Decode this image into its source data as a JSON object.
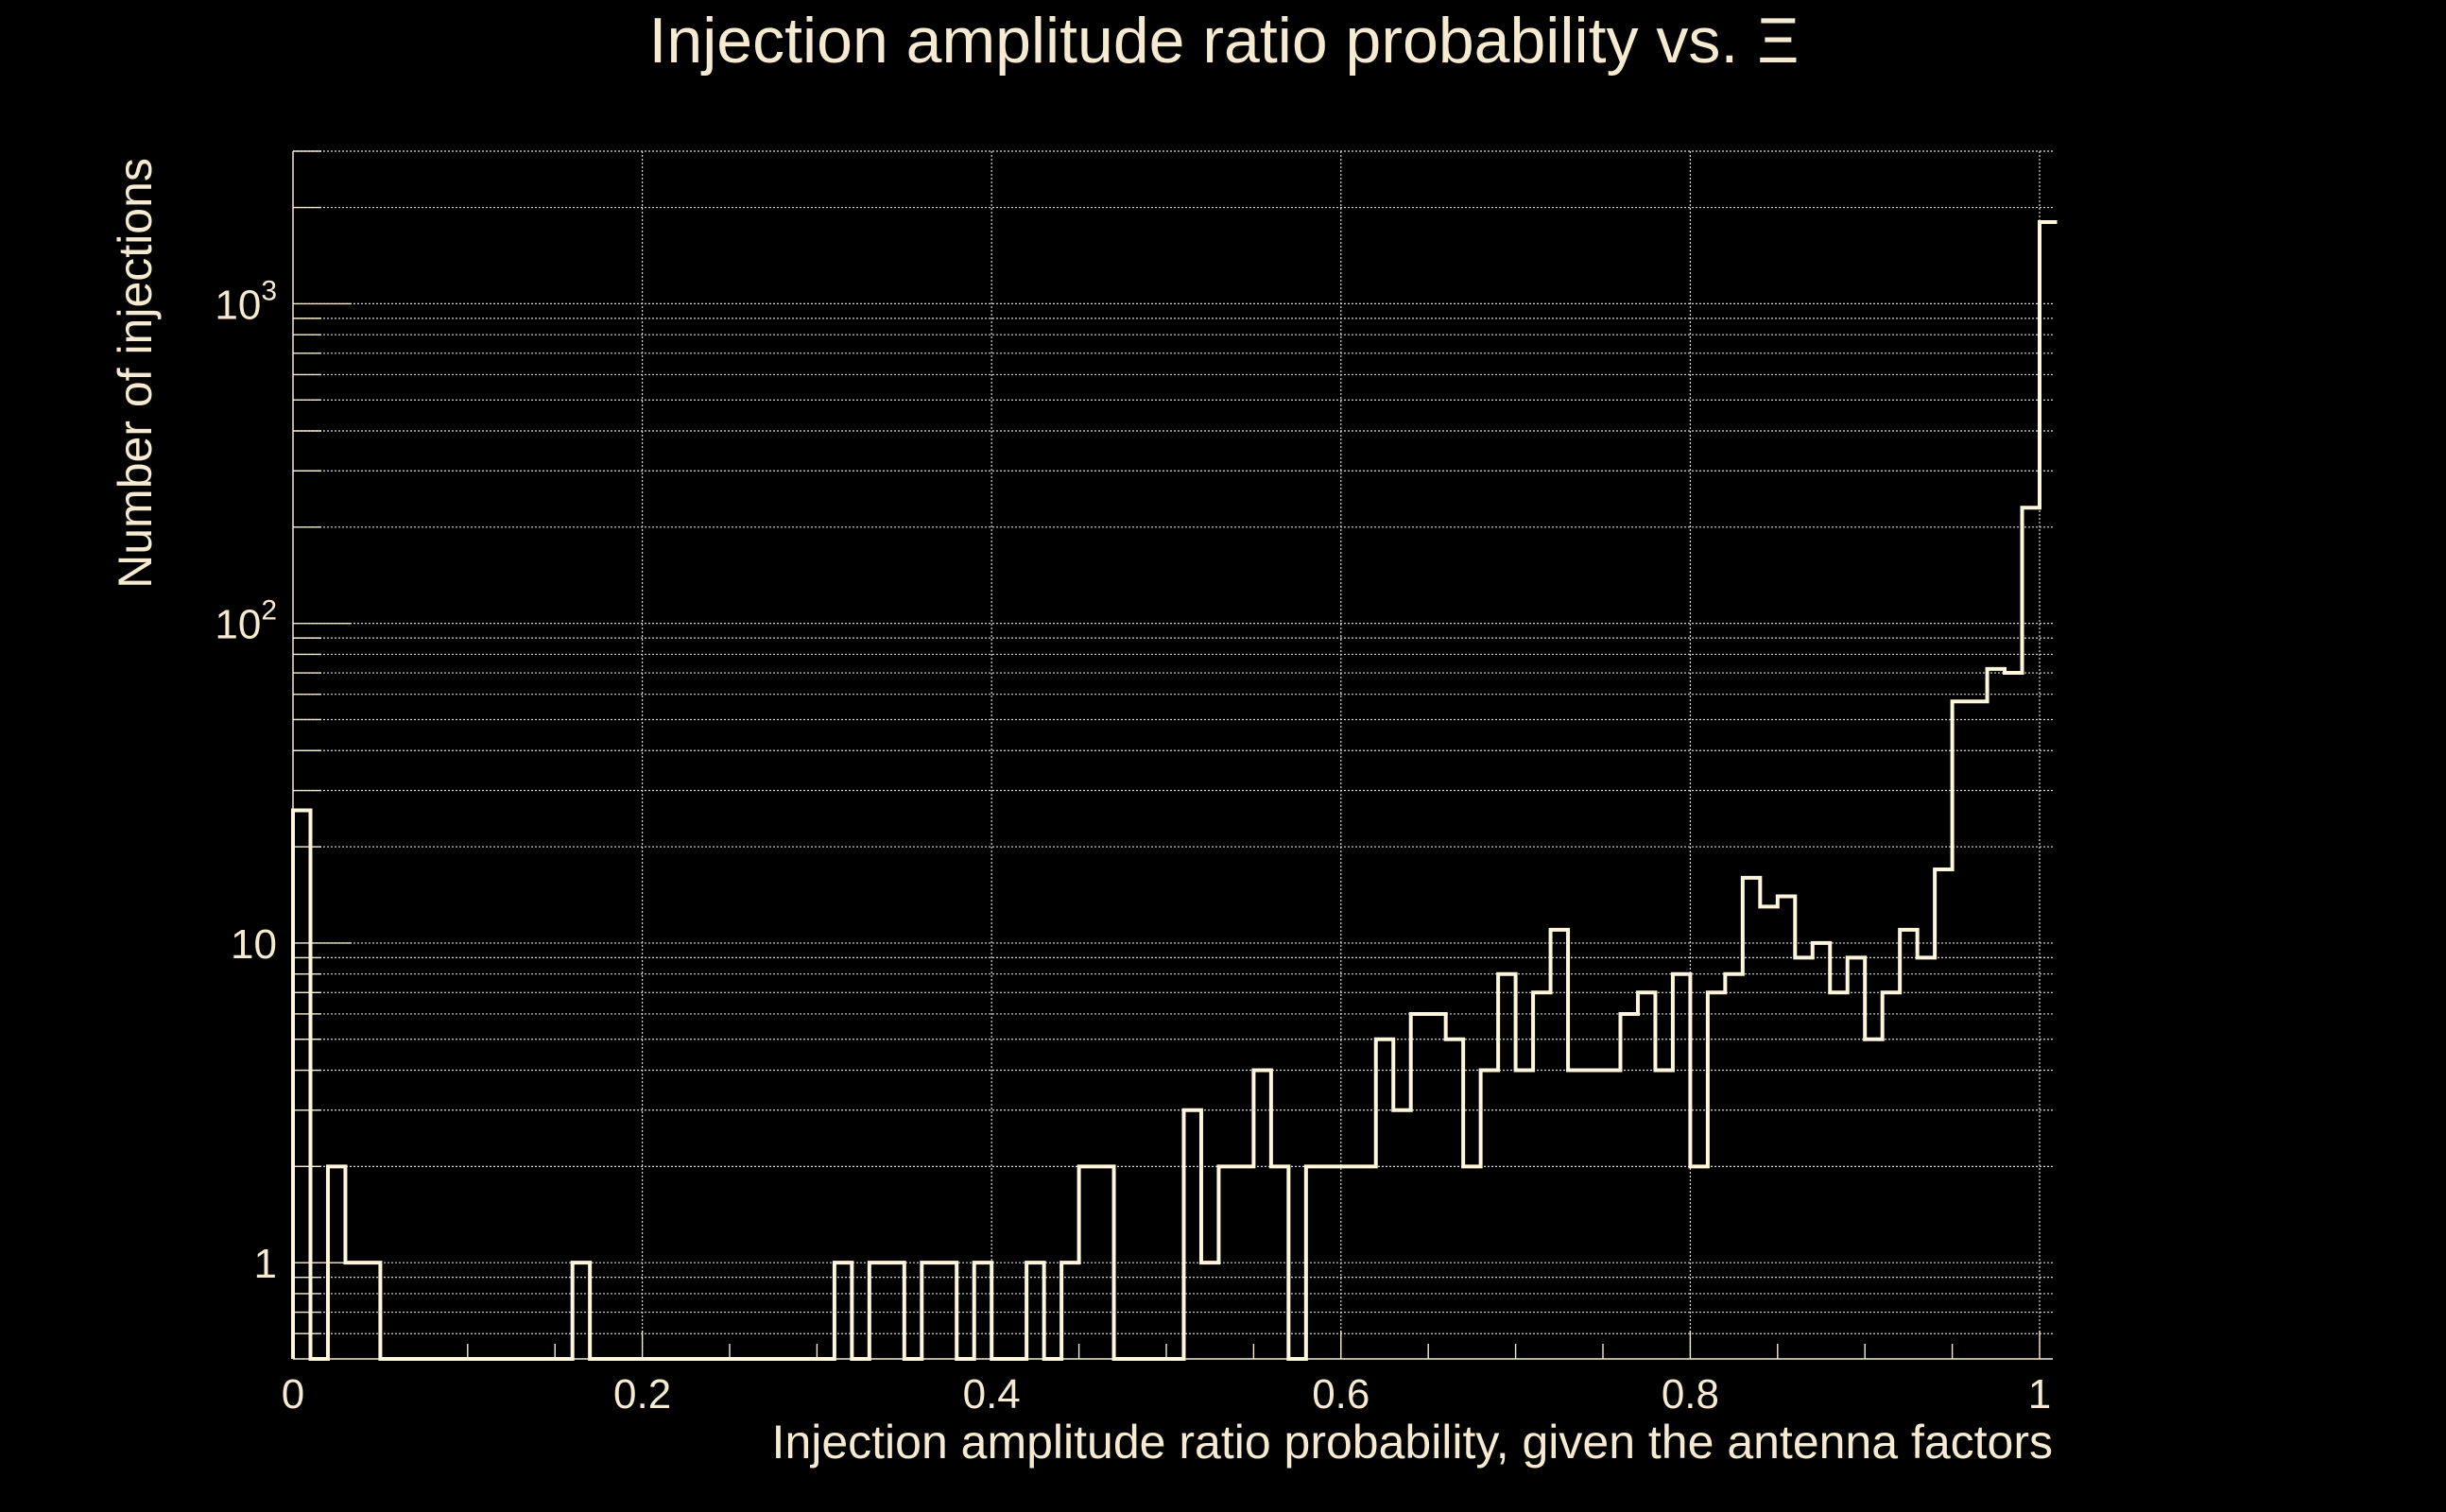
{
  "chart_data": {
    "type": "histogram",
    "title": "Injection amplitude ratio probability vs.",
    "title_symbol": "Ξ",
    "xlabel": "Injection amplitude ratio probability, given the antenna factors",
    "ylabel": "Number of injections",
    "xlim": [
      0,
      1.01
    ],
    "ylim": [
      0.5,
      3000
    ],
    "yscale": "log",
    "grid": true,
    "x_ticks": [
      {
        "value": 0,
        "label": "0"
      },
      {
        "value": 0.2,
        "label": "0.2"
      },
      {
        "value": 0.4,
        "label": "0.4"
      },
      {
        "value": 0.6,
        "label": "0.6"
      },
      {
        "value": 0.8,
        "label": "0.8"
      },
      {
        "value": 1,
        "label": "1"
      }
    ],
    "y_ticks": [
      {
        "value": 1,
        "base": "1",
        "exp": ""
      },
      {
        "value": 10,
        "base": "10",
        "exp": ""
      },
      {
        "value": 100,
        "base": "10",
        "exp": "2"
      },
      {
        "value": 1000,
        "base": "10",
        "exp": "3"
      }
    ],
    "bin_width": 0.01,
    "bin_start": 0,
    "counts": [
      26,
      0,
      2,
      1,
      1,
      0,
      0,
      0,
      0,
      0,
      0,
      0,
      0,
      0,
      0,
      0,
      1,
      0,
      0,
      0,
      0,
      0,
      0,
      0,
      0,
      0,
      0,
      0,
      0,
      0,
      0,
      1,
      0,
      1,
      1,
      0,
      1,
      1,
      0,
      1,
      0,
      0,
      1,
      0,
      1,
      2,
      2,
      0,
      0,
      0,
      0,
      3,
      1,
      2,
      2,
      4,
      2,
      0,
      2,
      2,
      2,
      2,
      5,
      3,
      6,
      6,
      5,
      2,
      4,
      8,
      4,
      7,
      11,
      4,
      4,
      4,
      6,
      7,
      4,
      8,
      2,
      7,
      8,
      16,
      13,
      14,
      9,
      10,
      7,
      9,
      5,
      7,
      11,
      9,
      17,
      57,
      57,
      72,
      70,
      230,
      1800
    ]
  }
}
